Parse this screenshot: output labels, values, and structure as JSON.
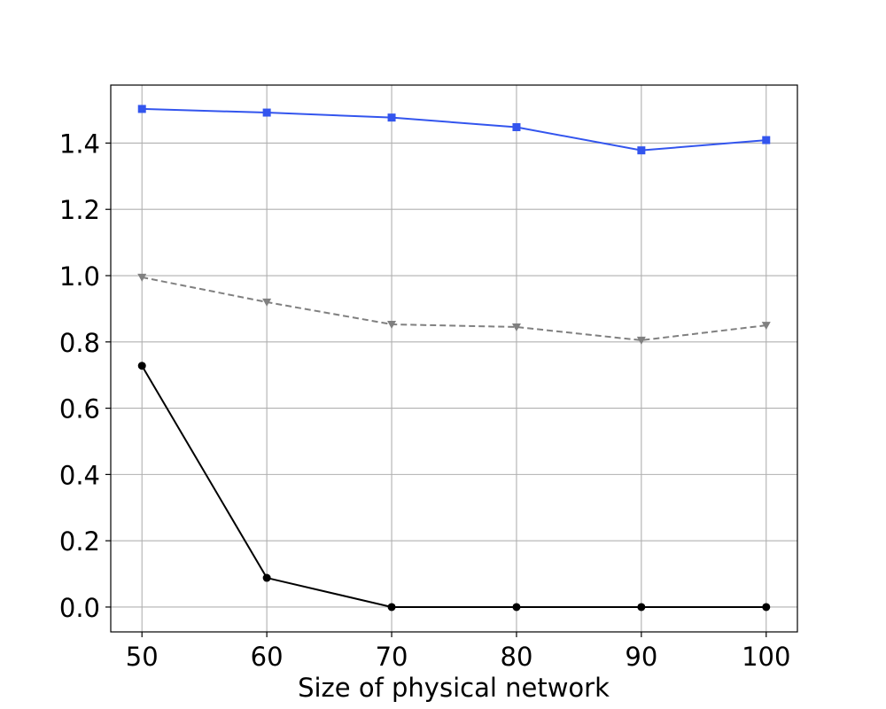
{
  "chart_data": {
    "type": "line",
    "title": "",
    "xlabel": "Size of physical network",
    "ylabel": "",
    "x": [
      50,
      60,
      70,
      80,
      90,
      100
    ],
    "xlim": [
      47.5,
      102.5
    ],
    "ylim": [
      -0.075,
      1.575
    ],
    "xticks": [
      "50",
      "60",
      "70",
      "80",
      "90",
      "100"
    ],
    "yticks": [
      "0.0",
      "0.2",
      "0.4",
      "0.6",
      "0.8",
      "1.0",
      "1.2",
      "1.4"
    ],
    "grid": true,
    "legend": "none",
    "series": [
      {
        "values": [
          1.503,
          1.492,
          1.477,
          1.448,
          1.378,
          1.409
        ],
        "color": "#3355ee",
        "linestyle": "solid",
        "marker": "square"
      },
      {
        "values": [
          0.995,
          0.92,
          0.853,
          0.845,
          0.805,
          0.85
        ],
        "color": "#808080",
        "linestyle": "dashed",
        "marker": "triangle-down"
      },
      {
        "values": [
          0.728,
          0.088,
          0.0,
          0.0,
          0.0,
          0.0
        ],
        "color": "#000000",
        "linestyle": "solid",
        "marker": "circle"
      }
    ]
  }
}
